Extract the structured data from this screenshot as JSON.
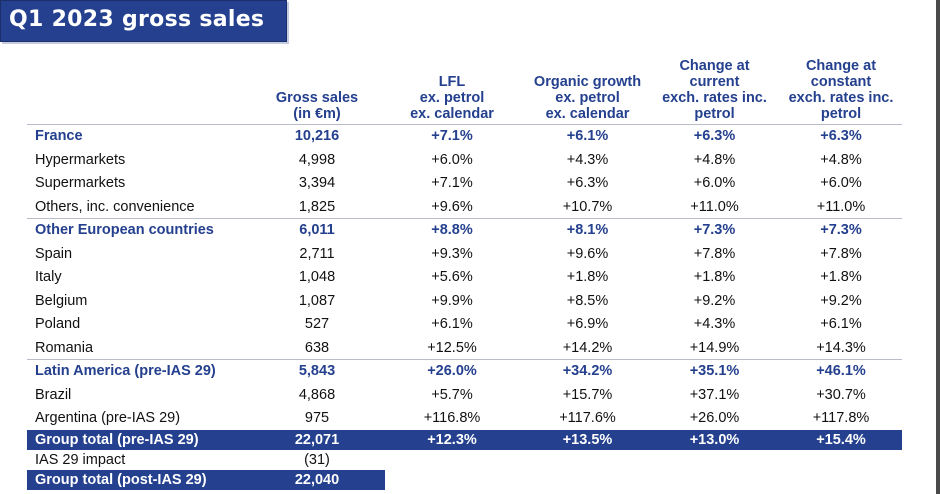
{
  "title": "Q1 2023 gross sales",
  "headers": [
    [
      "Gross sales",
      "(in €m)"
    ],
    [
      "LFL",
      "ex. petrol",
      "ex. calendar"
    ],
    [
      "Organic growth",
      "ex. petrol",
      "ex. calendar"
    ],
    [
      "Change at",
      "current",
      "exch. rates inc.",
      "petrol"
    ],
    [
      "Change at",
      "constant",
      "exch. rates inc.",
      "petrol"
    ]
  ],
  "rows": [
    {
      "label": "France",
      "gross": "10,216",
      "lfl": "+7.1%",
      "organic": "+6.1%",
      "current": "+6.3%",
      "constant": "+6.3%"
    },
    {
      "label": "Hypermarkets",
      "gross": "4,998",
      "lfl": "+6.0%",
      "organic": "+4.3%",
      "current": "+4.8%",
      "constant": "+4.8%"
    },
    {
      "label": "Supermarkets",
      "gross": "3,394",
      "lfl": "+7.1%",
      "organic": "+6.3%",
      "current": "+6.0%",
      "constant": "+6.0%"
    },
    {
      "label": "Others, inc. convenience",
      "gross": "1,825",
      "lfl": "+9.6%",
      "organic": "+10.7%",
      "current": "+11.0%",
      "constant": "+11.0%"
    },
    {
      "label": "Other European countries",
      "gross": "6,011",
      "lfl": "+8.8%",
      "organic": "+8.1%",
      "current": "+7.3%",
      "constant": "+7.3%"
    },
    {
      "label": "Spain",
      "gross": "2,711",
      "lfl": "+9.3%",
      "organic": "+9.6%",
      "current": "+7.8%",
      "constant": "+7.8%"
    },
    {
      "label": "Italy",
      "gross": "1,048",
      "lfl": "+5.6%",
      "organic": "+1.8%",
      "current": "+1.8%",
      "constant": "+1.8%"
    },
    {
      "label": "Belgium",
      "gross": "1,087",
      "lfl": "+9.9%",
      "organic": "+8.5%",
      "current": "+9.2%",
      "constant": "+9.2%"
    },
    {
      "label": "Poland",
      "gross": "527",
      "lfl": "+6.1%",
      "organic": "+6.9%",
      "current": "+4.3%",
      "constant": "+6.1%"
    },
    {
      "label": "Romania",
      "gross": "638",
      "lfl": "+12.5%",
      "organic": "+14.2%",
      "current": "+14.9%",
      "constant": "+14.3%"
    },
    {
      "label": "Latin America (pre-IAS 29)",
      "gross": "5,843",
      "lfl": "+26.0%",
      "organic": "+34.2%",
      "current": "+35.1%",
      "constant": "+46.1%"
    },
    {
      "label": "Brazil",
      "gross": "4,868",
      "lfl": "+5.7%",
      "organic": "+15.7%",
      "current": "+37.1%",
      "constant": "+30.7%"
    },
    {
      "label": "Argentina (pre-IAS 29)",
      "gross": "975",
      "lfl": "+116.8%",
      "organic": "+117.6%",
      "current": "+26.0%",
      "constant": "+117.8%"
    },
    {
      "label": "Group total (pre-IAS 29)",
      "gross": "22,071",
      "lfl": "+12.3%",
      "organic": "+13.5%",
      "current": "+13.0%",
      "constant": "+15.4%"
    }
  ],
  "ias_impact": {
    "label": "IAS 29 impact",
    "gross": "(31)"
  },
  "group_total_post": {
    "label": "Group total (post-IAS 29)",
    "gross": "22,040"
  }
}
